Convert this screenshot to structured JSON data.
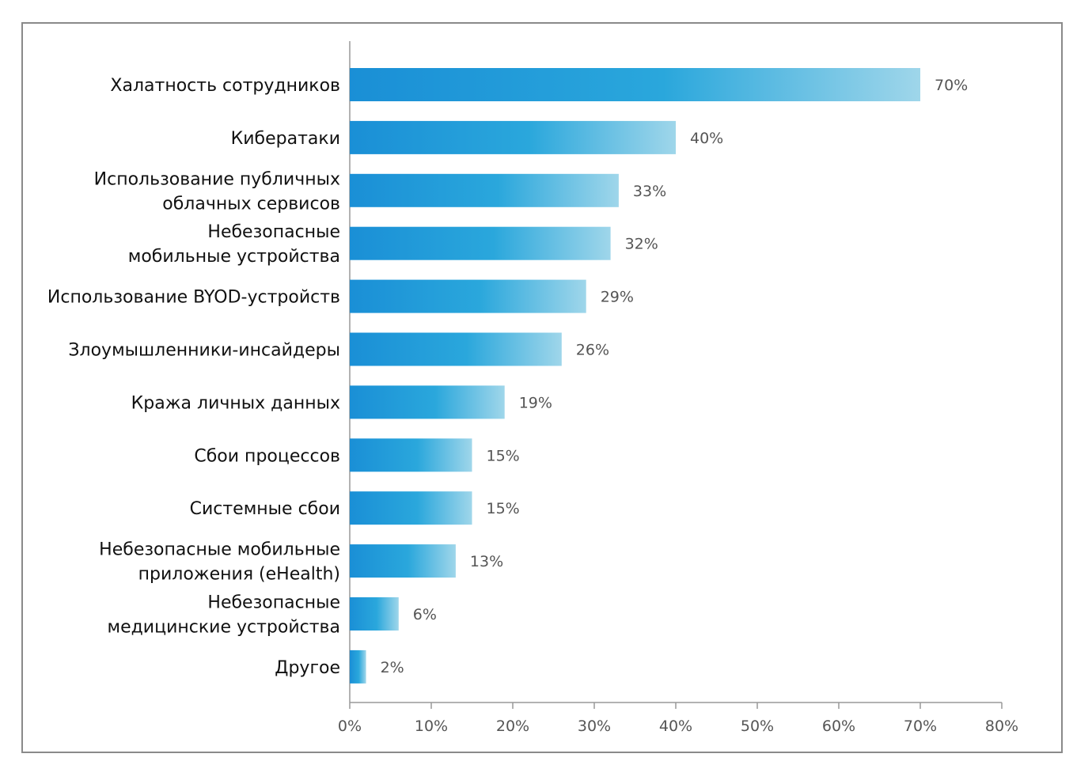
{
  "chart_data": {
    "type": "bar",
    "orientation": "horizontal",
    "title": "",
    "xlabel": "",
    "ylabel": "",
    "xlim": [
      0,
      80
    ],
    "x_ticks": [
      "0%",
      "10%",
      "20%",
      "30%",
      "40%",
      "50%",
      "60%",
      "70%",
      "80%"
    ],
    "grid": false,
    "bar_color_start": "#1a8fd6",
    "bar_color_end": "#9fd6ea",
    "categories": [
      [
        "Халатность сотрудников"
      ],
      [
        "Кибератаки"
      ],
      [
        "Использование публичных",
        "облачных сервисов"
      ],
      [
        "Небезопасные",
        "мобильные устройства"
      ],
      [
        "Использование BYOD-устройств"
      ],
      [
        "Злоумышленники-инсайдеры"
      ],
      [
        "Кража личных данных"
      ],
      [
        "Сбои процессов"
      ],
      [
        "Системные сбои"
      ],
      [
        "Небезопасные мобильные",
        "приложения (eHealth)"
      ],
      [
        "Небезопасные",
        "медицинские устройства"
      ],
      [
        "Другое"
      ]
    ],
    "values": [
      70,
      40,
      33,
      32,
      29,
      26,
      19,
      15,
      15,
      13,
      6,
      2
    ],
    "value_labels": [
      "70%",
      "40%",
      "33%",
      "32%",
      "29%",
      "26%",
      "19%",
      "15%",
      "15%",
      "13%",
      "6%",
      "2%"
    ]
  }
}
